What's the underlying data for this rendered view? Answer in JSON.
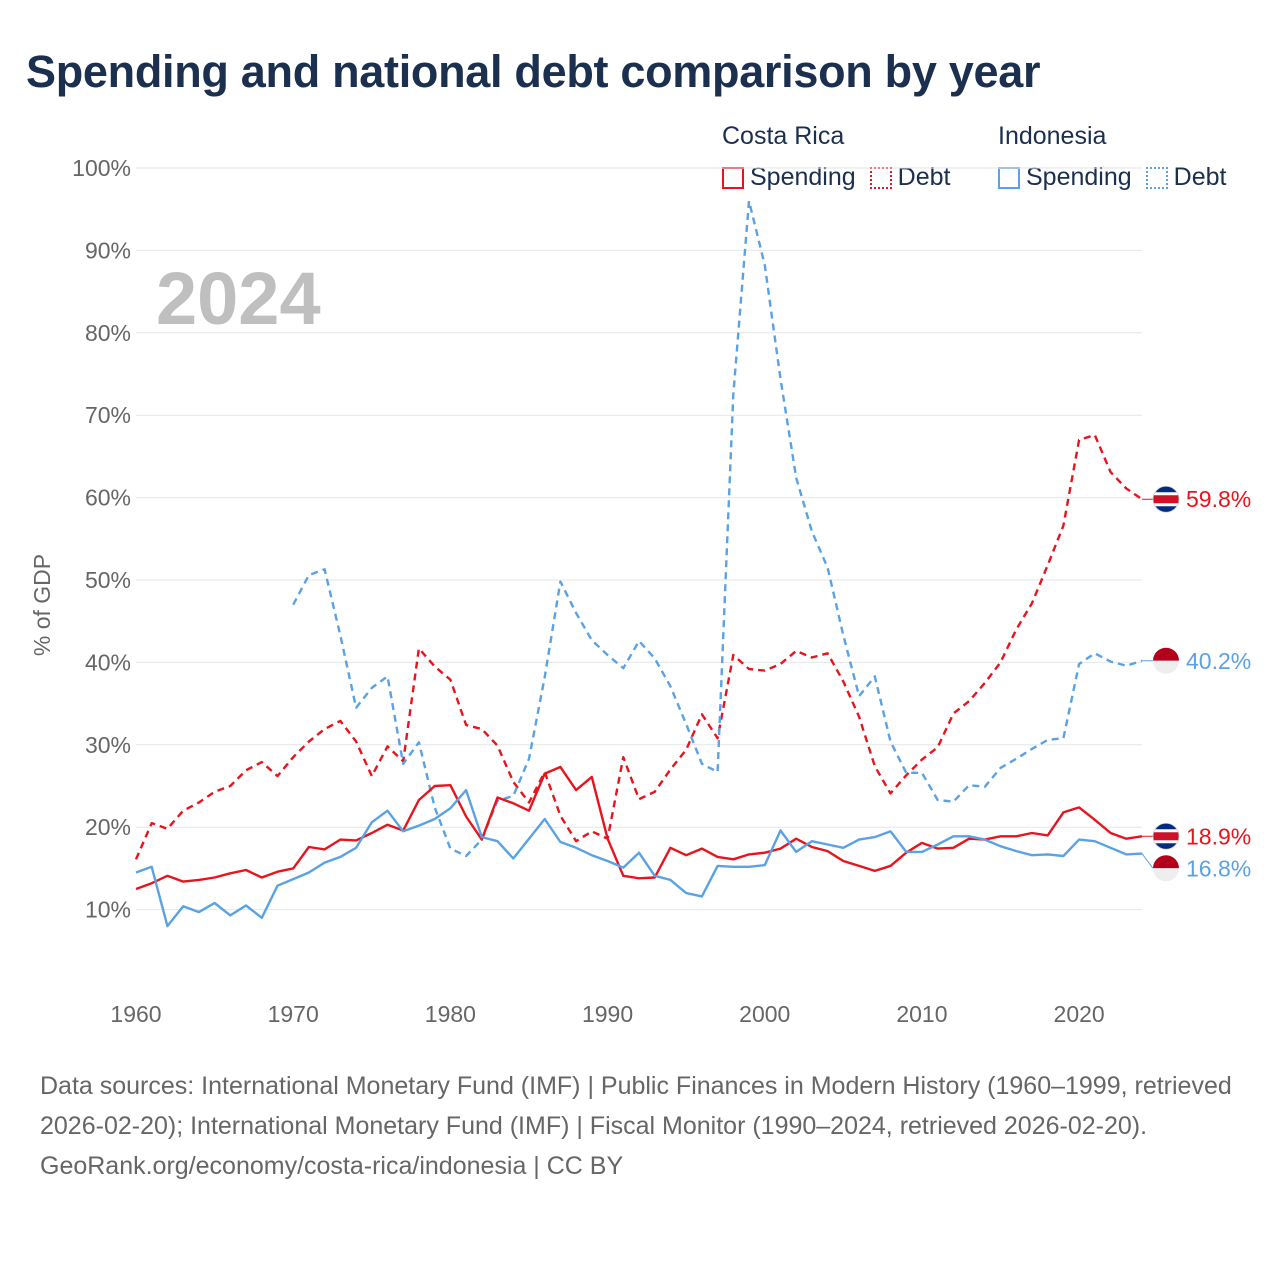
{
  "title": "Spending and national debt comparison by year",
  "legend": {
    "groups": [
      {
        "name": "Costa Rica",
        "spending_label": "Spending",
        "debt_label": "Debt"
      },
      {
        "name": "Indonesia",
        "spending_label": "Spending",
        "debt_label": "Debt"
      }
    ]
  },
  "colors": {
    "costa_rica": "#e8141d",
    "indonesia": "#5aa2e3",
    "grid": "#e6e6e6",
    "axis_text": "#666666",
    "year_watermark": "#bfbfbf"
  },
  "chart_data": {
    "type": "line",
    "year_label": "2024",
    "ylabel": "% of GDP",
    "ylim": [
      0,
      100
    ],
    "xlim": [
      1960,
      2024
    ],
    "y_ticks": [
      10,
      20,
      30,
      40,
      50,
      60,
      70,
      80,
      90,
      100
    ],
    "y_tick_labels": [
      "10%",
      "20%",
      "30%",
      "40%",
      "50%",
      "60%",
      "70%",
      "80%",
      "90%",
      "100%"
    ],
    "x_ticks": [
      1960,
      1970,
      1980,
      1990,
      2000,
      2010,
      2020
    ],
    "x_tick_labels": [
      "1960",
      "1970",
      "1980",
      "1990",
      "2000",
      "2010",
      "2020"
    ],
    "series": [
      {
        "name": "Costa Rica Debt",
        "country": "Costa Rica",
        "kind": "debt",
        "color": "#e8141d",
        "end_label": "59.8%",
        "end_value": 59.8,
        "points": [
          [
            1960,
            16.1
          ],
          [
            1961,
            20.5
          ],
          [
            1962,
            19.8
          ],
          [
            1963,
            22
          ],
          [
            1964,
            23
          ],
          [
            1965,
            24.3
          ],
          [
            1966,
            25
          ],
          [
            1967,
            26.9
          ],
          [
            1968,
            27.9
          ],
          [
            1969,
            26.2
          ],
          [
            1970,
            28.5
          ],
          [
            1971,
            30.4
          ],
          [
            1972,
            31.9
          ],
          [
            1973,
            32.9
          ],
          [
            1974,
            30.4
          ],
          [
            1975,
            26.2
          ],
          [
            1976,
            29.8
          ],
          [
            1977,
            28
          ],
          [
            1978,
            41.7
          ],
          [
            1979,
            39.5
          ],
          [
            1980,
            37.9
          ],
          [
            1981,
            32.4
          ],
          [
            1982,
            31.9
          ],
          [
            1983,
            29.9
          ],
          [
            1984,
            25.5
          ],
          [
            1985,
            23
          ],
          [
            1986,
            26.7
          ],
          [
            1987,
            21.4
          ],
          [
            1988,
            18.3
          ],
          [
            1989,
            19.5
          ],
          [
            1990,
            18.6
          ],
          [
            1991,
            28.5
          ],
          [
            1992,
            23.4
          ],
          [
            1993,
            24.3
          ],
          [
            1994,
            27
          ],
          [
            1995,
            29.4
          ],
          [
            1996,
            33.7
          ],
          [
            1997,
            30.8
          ],
          [
            1998,
            40.9
          ],
          [
            1999,
            39.2
          ],
          [
            2000,
            39
          ],
          [
            2001,
            39.8
          ],
          [
            2002,
            41.4
          ],
          [
            2003,
            40.6
          ],
          [
            2004,
            41.1
          ],
          [
            2005,
            37.7
          ],
          [
            2006,
            33.4
          ],
          [
            2007,
            27.4
          ],
          [
            2008,
            24.1
          ],
          [
            2009,
            26.3
          ],
          [
            2010,
            28.2
          ],
          [
            2011,
            29.7
          ],
          [
            2012,
            33.8
          ],
          [
            2013,
            35.3
          ],
          [
            2014,
            37.5
          ],
          [
            2015,
            40
          ],
          [
            2016,
            44
          ],
          [
            2017,
            47.2
          ],
          [
            2018,
            51.8
          ],
          [
            2019,
            56.6
          ],
          [
            2020,
            67
          ],
          [
            2021,
            67.6
          ],
          [
            2022,
            63.1
          ],
          [
            2023,
            61.1
          ],
          [
            2024,
            59.8
          ]
        ]
      },
      {
        "name": "Indonesia Debt",
        "country": "Indonesia",
        "kind": "debt",
        "color": "#5aa2e3",
        "end_label": "40.2%",
        "end_value": 40.2,
        "points": [
          [
            1970,
            47
          ],
          [
            1971,
            50.6
          ],
          [
            1972,
            51.3
          ],
          [
            1973,
            43.3
          ],
          [
            1974,
            34.5
          ],
          [
            1975,
            36.9
          ],
          [
            1976,
            38.3
          ],
          [
            1977,
            27.7
          ],
          [
            1978,
            30.3
          ],
          [
            1979,
            22.4
          ],
          [
            1980,
            17.4
          ],
          [
            1981,
            16.5
          ],
          [
            1982,
            18.5
          ],
          [
            1983,
            23.2
          ],
          [
            1984,
            23.8
          ],
          [
            1985,
            28.3
          ],
          [
            1986,
            38.2
          ],
          [
            1987,
            49.8
          ],
          [
            1988,
            46
          ],
          [
            1989,
            42.7
          ],
          [
            1990,
            40.9
          ],
          [
            1991,
            39.3
          ],
          [
            1992,
            42.6
          ],
          [
            1993,
            40.5
          ],
          [
            1994,
            37.1
          ],
          [
            1995,
            32.5
          ],
          [
            1996,
            27.7
          ],
          [
            1997,
            26.7
          ],
          [
            1998,
            72.5
          ],
          [
            1999,
            96
          ],
          [
            2000,
            88.2
          ],
          [
            2001,
            74.4
          ],
          [
            2002,
            62.4
          ],
          [
            2003,
            55.9
          ],
          [
            2004,
            51.5
          ],
          [
            2005,
            43.3
          ],
          [
            2006,
            35.9
          ],
          [
            2007,
            38.3
          ],
          [
            2008,
            30.4
          ],
          [
            2009,
            26.6
          ],
          [
            2010,
            26.6
          ],
          [
            2011,
            23.3
          ],
          [
            2012,
            23.1
          ],
          [
            2013,
            25.1
          ],
          [
            2014,
            24.9
          ],
          [
            2015,
            27.2
          ],
          [
            2016,
            28.3
          ],
          [
            2017,
            29.5
          ],
          [
            2018,
            30.6
          ],
          [
            2019,
            30.8
          ],
          [
            2020,
            39.8
          ],
          [
            2021,
            41.1
          ],
          [
            2022,
            40.1
          ],
          [
            2023,
            39.6
          ],
          [
            2024,
            40.2
          ]
        ]
      },
      {
        "name": "Costa Rica Spending",
        "country": "Costa Rica",
        "kind": "spending",
        "color": "#e8141d",
        "end_label": "18.9%",
        "end_value": 18.9,
        "points": [
          [
            1960,
            12.5
          ],
          [
            1961,
            13.2
          ],
          [
            1962,
            14.1
          ],
          [
            1963,
            13.4
          ],
          [
            1964,
            13.6
          ],
          [
            1965,
            13.9
          ],
          [
            1966,
            14.4
          ],
          [
            1967,
            14.8
          ],
          [
            1968,
            13.9
          ],
          [
            1969,
            14.6
          ],
          [
            1970,
            15
          ],
          [
            1971,
            17.6
          ],
          [
            1972,
            17.3
          ],
          [
            1973,
            18.5
          ],
          [
            1974,
            18.4
          ],
          [
            1975,
            19.3
          ],
          [
            1976,
            20.3
          ],
          [
            1977,
            19.6
          ],
          [
            1978,
            23.3
          ],
          [
            1979,
            25
          ],
          [
            1980,
            25.1
          ],
          [
            1981,
            21.3
          ],
          [
            1982,
            18.5
          ],
          [
            1983,
            23.6
          ],
          [
            1984,
            22.9
          ],
          [
            1985,
            22
          ],
          [
            1986,
            26.5
          ],
          [
            1987,
            27.3
          ],
          [
            1988,
            24.5
          ],
          [
            1989,
            26.1
          ],
          [
            1990,
            18.6
          ],
          [
            1991,
            14.1
          ],
          [
            1992,
            13.8
          ],
          [
            1993,
            13.9
          ],
          [
            1994,
            17.5
          ],
          [
            1995,
            16.6
          ],
          [
            1996,
            17.4
          ],
          [
            1997,
            16.4
          ],
          [
            1998,
            16.1
          ],
          [
            1999,
            16.7
          ],
          [
            2000,
            16.9
          ],
          [
            2001,
            17.4
          ],
          [
            2002,
            18.6
          ],
          [
            2003,
            17.6
          ],
          [
            2004,
            17.1
          ],
          [
            2005,
            15.9
          ],
          [
            2006,
            15.3
          ],
          [
            2007,
            14.7
          ],
          [
            2008,
            15.3
          ],
          [
            2009,
            16.9
          ],
          [
            2010,
            18.1
          ],
          [
            2011,
            17.4
          ],
          [
            2012,
            17.5
          ],
          [
            2013,
            18.6
          ],
          [
            2014,
            18.5
          ],
          [
            2015,
            18.9
          ],
          [
            2016,
            18.9
          ],
          [
            2017,
            19.3
          ],
          [
            2018,
            19
          ],
          [
            2019,
            21.8
          ],
          [
            2020,
            22.4
          ],
          [
            2021,
            20.9
          ],
          [
            2022,
            19.3
          ],
          [
            2023,
            18.6
          ],
          [
            2024,
            18.9
          ]
        ]
      },
      {
        "name": "Indonesia Spending",
        "country": "Indonesia",
        "kind": "spending",
        "color": "#5aa2e3",
        "end_label": "16.8%",
        "end_value": 16.8,
        "points": [
          [
            1960,
            14.5
          ],
          [
            1961,
            15.2
          ],
          [
            1962,
            8
          ],
          [
            1963,
            10.4
          ],
          [
            1964,
            9.7
          ],
          [
            1965,
            10.8
          ],
          [
            1966,
            9.3
          ],
          [
            1967,
            10.5
          ],
          [
            1968,
            9
          ],
          [
            1969,
            12.9
          ],
          [
            1970,
            13.7
          ],
          [
            1971,
            14.5
          ],
          [
            1972,
            15.7
          ],
          [
            1973,
            16.4
          ],
          [
            1974,
            17.5
          ],
          [
            1975,
            20.6
          ],
          [
            1976,
            22
          ],
          [
            1977,
            19.5
          ],
          [
            1978,
            20.2
          ],
          [
            1979,
            21
          ],
          [
            1980,
            22.3
          ],
          [
            1981,
            24.5
          ],
          [
            1982,
            18.8
          ],
          [
            1983,
            18.3
          ],
          [
            1984,
            16.2
          ],
          [
            1985,
            18.6
          ],
          [
            1986,
            21
          ],
          [
            1987,
            18.2
          ],
          [
            1988,
            17.5
          ],
          [
            1989,
            16.6
          ],
          [
            1990,
            15.9
          ],
          [
            1991,
            15.1
          ],
          [
            1992,
            16.9
          ],
          [
            1993,
            14.1
          ],
          [
            1994,
            13.6
          ],
          [
            1995,
            12
          ],
          [
            1996,
            11.6
          ],
          [
            1997,
            15.3
          ],
          [
            1998,
            15.2
          ],
          [
            1999,
            15.2
          ],
          [
            2000,
            15.4
          ],
          [
            2001,
            19.6
          ],
          [
            2002,
            17
          ],
          [
            2003,
            18.3
          ],
          [
            2004,
            17.9
          ],
          [
            2005,
            17.5
          ],
          [
            2006,
            18.5
          ],
          [
            2007,
            18.8
          ],
          [
            2008,
            19.5
          ],
          [
            2009,
            17
          ],
          [
            2010,
            17
          ],
          [
            2011,
            17.9
          ],
          [
            2012,
            18.9
          ],
          [
            2013,
            18.9
          ],
          [
            2014,
            18.5
          ],
          [
            2015,
            17.7
          ],
          [
            2016,
            17.1
          ],
          [
            2017,
            16.6
          ],
          [
            2018,
            16.7
          ],
          [
            2019,
            16.5
          ],
          [
            2020,
            18.5
          ],
          [
            2021,
            18.3
          ],
          [
            2022,
            17.5
          ],
          [
            2023,
            16.7
          ],
          [
            2024,
            16.8
          ]
        ]
      }
    ]
  },
  "footer": {
    "sources": "Data sources: International Monetary Fund (IMF) | Public Finances in Modern History (1960–1999, retrieved 2026-02-20); International Monetary Fund (IMF) | Fiscal Monitor (1990–2024, retrieved 2026-02-20).",
    "credit": "GeoRank.org/economy/costa-rica/indonesia | CC BY"
  }
}
